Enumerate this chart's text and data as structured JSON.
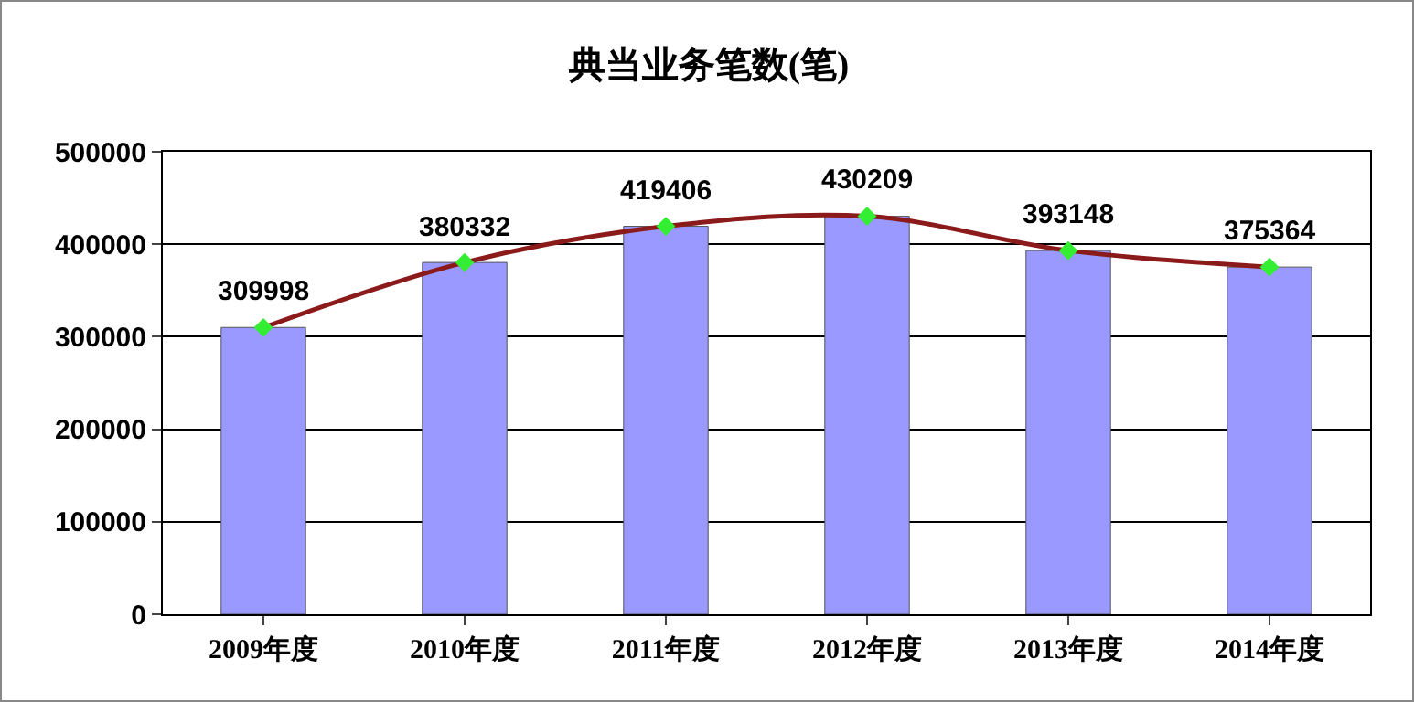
{
  "chart_data": {
    "type": "bar",
    "title": "典当业务笔数(笔)",
    "categories": [
      "2009年度",
      "2010年度",
      "2011年度",
      "2012年度",
      "2013年度",
      "2014年度"
    ],
    "series": [
      {
        "color": "#9999ff",
        "values": [
          309998,
          380332,
          419406,
          430209,
          393148,
          375364
        ],
        "value_labels": [
          "309998",
          "380332",
          "419406",
          "430209",
          "393148",
          "375364"
        ]
      },
      {
        "type": "line",
        "color": "#8b1a1a",
        "values": [
          309998,
          380332,
          419406,
          430209,
          393148,
          375364
        ]
      }
    ],
    "ylim": [
      0,
      500000
    ],
    "yticks": [
      0,
      100000,
      200000,
      300000,
      400000,
      500000
    ],
    "grid": "y",
    "legend": false,
    "marker": "diamond",
    "line_style": "solid"
  }
}
